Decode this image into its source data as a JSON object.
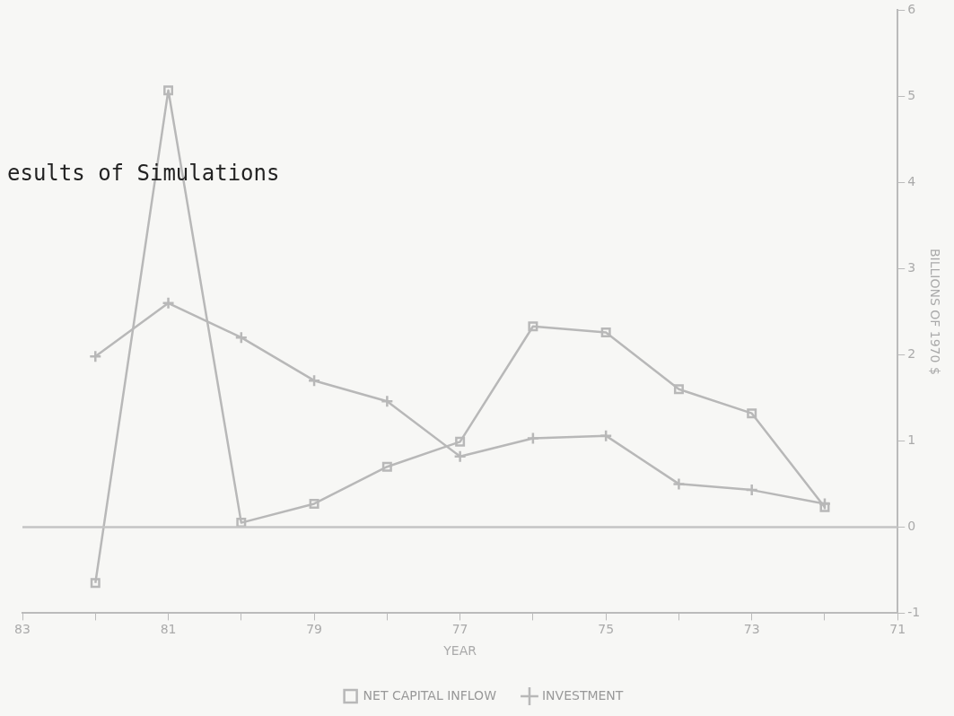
{
  "chart_data": {
    "type": "line",
    "xlabel": "YEAR",
    "ylabel": "BILLIONS OF 1970 $",
    "annotations": [
      "esults of Simulations"
    ],
    "x": [
      82,
      81,
      80,
      79,
      78,
      77,
      76,
      75,
      74,
      73,
      72
    ],
    "series": [
      {
        "name": "NET CAPITAL INFLOW",
        "color": "#b8b8b8",
        "marker": "square",
        "values": [
          -0.65,
          5.07,
          0.05,
          0.27,
          0.7,
          0.99,
          2.33,
          2.26,
          1.6,
          1.32,
          0.23
        ]
      },
      {
        "name": "INVESTMENT",
        "color": "#b8b8b8",
        "marker": "cross",
        "values": [
          1.98,
          2.6,
          2.2,
          1.7,
          1.46,
          0.82,
          1.03,
          1.06,
          0.5,
          0.43,
          0.27
        ]
      }
    ],
    "xlim": [
      83,
      71
    ],
    "xticks": [
      83,
      {
        "value": 82,
        "label": null
      },
      81,
      {
        "value": 80,
        "label": null
      },
      79,
      {
        "value": 78,
        "label": null
      },
      77,
      {
        "value": 76,
        "label": null
      },
      75,
      {
        "value": 74,
        "label": null
      },
      73,
      {
        "value": 72,
        "label": null
      },
      71
    ],
    "ylim": [
      -1,
      6
    ],
    "yticks": [
      -1,
      0,
      1,
      2,
      3,
      4,
      5,
      6
    ],
    "ref_lines": [
      {
        "axis": "y",
        "value": 0,
        "color": "#c4c4c4"
      }
    ],
    "grid": false,
    "legend": "bottom"
  }
}
